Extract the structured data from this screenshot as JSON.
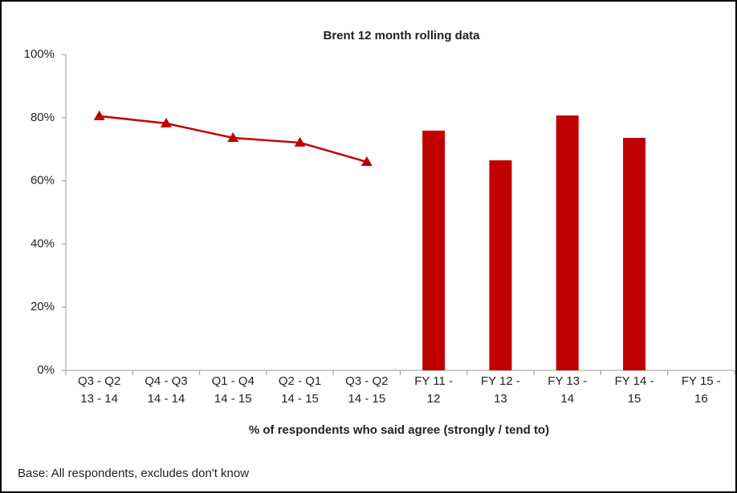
{
  "chart_data": {
    "type": "bar",
    "title": "Brent 12 month rolling data",
    "x_label": "% of respondents who said agree (strongly / tend to)",
    "note": "Base: All respondents, excludes don't know",
    "categories": [
      "Q3 - Q2\n13 - 14",
      "Q4 - Q3\n14 - 14",
      "Q1 - Q4\n14 - 15",
      "Q2 - Q1\n14 - 15",
      "Q3 - Q2\n14 - 15",
      "FY 11 -\n12",
      "FY 12 -\n13",
      "FY 13 -\n14",
      "FY 14 -\n15",
      "FY 15 -\n16"
    ],
    "series": [
      {
        "type": "line",
        "color": "#c00000",
        "values": [
          80.5,
          78.2,
          73.6,
          72.1,
          66,
          null,
          null,
          null,
          null,
          null
        ]
      },
      {
        "type": "bar",
        "color": "#c00000",
        "values": [
          null,
          null,
          null,
          null,
          null,
          75.9,
          66.5,
          80.7,
          73.6,
          null
        ]
      }
    ],
    "ylim": [
      0,
      100
    ],
    "yticks": [
      {
        "value": 0,
        "label": "0%"
      },
      {
        "value": 20,
        "label": "20%"
      },
      {
        "value": 40,
        "label": "40%"
      },
      {
        "value": 60,
        "label": "60%"
      },
      {
        "value": 80,
        "label": "80%"
      },
      {
        "value": 100,
        "label": "100%"
      }
    ],
    "grid": false
  }
}
